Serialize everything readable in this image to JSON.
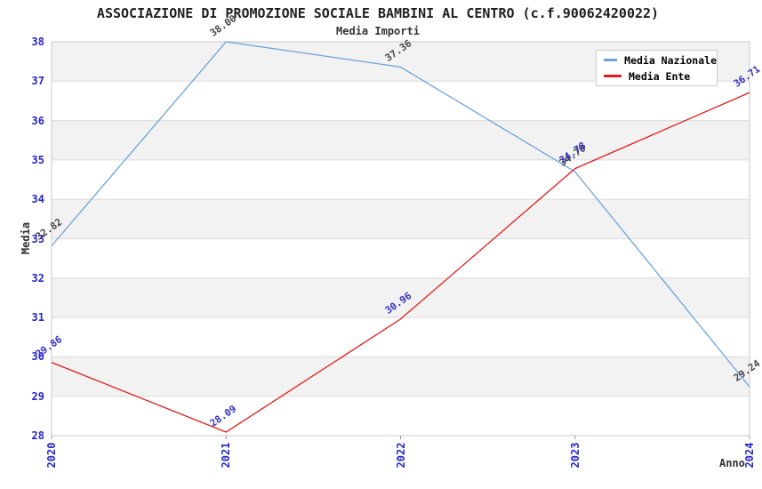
{
  "title": "ASSOCIAZIONE DI PROMOZIONE SOCIALE BAMBINI AL CENTRO (c.f.90062420022)",
  "subtitle": "Media Importi",
  "axes": {
    "x_label": "Anno",
    "y_label": "Media"
  },
  "legend": [
    {
      "label": "Media Nazionale",
      "color": "#6fa3db"
    },
    {
      "label": "Media Ente",
      "color": "#e31b1b"
    }
  ],
  "colors": {
    "tick_label": "#2626cc",
    "grid_band": "#f2f2f2",
    "grid_line": "#dcdcdc",
    "plot_border": "#c9c9c9",
    "axis_tick_mark": "#999999",
    "title_text": "#1f1f1f",
    "axis_title_text": "#333333"
  },
  "chart_data": {
    "type": "line",
    "title": "ASSOCIAZIONE DI PROMOZIONE SOCIALE BAMBINI AL CENTRO (c.f.90062420022)",
    "subtitle": "Media Importi",
    "xlabel": "Anno",
    "ylabel": "Media",
    "x": [
      "2020",
      "2021",
      "2022",
      "2023",
      "2024"
    ],
    "series": [
      {
        "name": "Media Nazionale",
        "color": "#6fa3db",
        "label_color": "#45454b",
        "values": [
          32.82,
          38.0,
          37.36,
          34.7,
          29.24
        ],
        "labels": [
          "32.82",
          "38.00",
          "37.36",
          "34.70",
          "29.24"
        ]
      },
      {
        "name": "Media Ente",
        "color": "#e31b1b",
        "label_color": "#3232c0",
        "values": [
          29.86,
          28.09,
          30.96,
          34.78,
          36.71
        ],
        "labels": [
          "29.86",
          "28.09",
          "30.96",
          "34.78",
          "36.71"
        ]
      }
    ],
    "ylim": [
      28,
      38
    ],
    "y_ticks": [
      28,
      29,
      30,
      31,
      32,
      33,
      34,
      35,
      36,
      37,
      38
    ],
    "grid": "horizontal gridlines with alternating gray bands",
    "legend_position": "top-right"
  }
}
